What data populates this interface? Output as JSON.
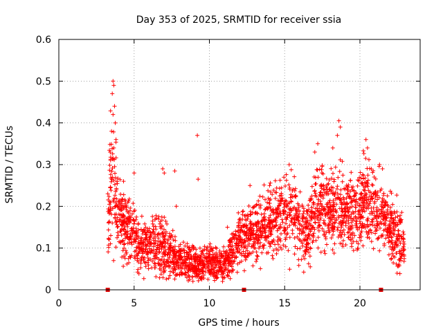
{
  "chart_data": {
    "type": "scatter",
    "title": "Day 353 of 2025, SRMTID for receiver ssia",
    "xlabel": "GPS time / hours",
    "ylabel": "SRMTID / TECUs",
    "xlim": [
      0,
      24
    ],
    "ylim": [
      0,
      0.6
    ],
    "x_ticks": [
      0,
      5,
      10,
      15,
      20
    ],
    "y_ticks": [
      0,
      0.1,
      0.2,
      0.3,
      0.4,
      0.5,
      0.6
    ],
    "x_tick_labels": [
      "0",
      "5",
      "10",
      "15",
      "20"
    ],
    "y_tick_labels": [
      "0",
      "0.1",
      "0.2",
      "0.3",
      "0.4",
      "0.5",
      "0.6"
    ],
    "grid": true,
    "marker": "plus",
    "color": "#ff0000",
    "baseline_markers_x": [
      3.25,
      12.3,
      21.4
    ],
    "trend": [
      [
        3.3,
        0.16,
        0.045
      ],
      [
        3.5,
        0.3,
        0.09
      ],
      [
        3.7,
        0.24,
        0.06
      ],
      [
        3.9,
        0.19,
        0.05
      ],
      [
        4.2,
        0.16,
        0.04
      ],
      [
        4.6,
        0.15,
        0.04
      ],
      [
        5.0,
        0.13,
        0.035
      ],
      [
        5.5,
        0.11,
        0.03
      ],
      [
        6.0,
        0.11,
        0.03
      ],
      [
        6.5,
        0.11,
        0.035
      ],
      [
        7.0,
        0.1,
        0.035
      ],
      [
        7.5,
        0.09,
        0.03
      ],
      [
        8.0,
        0.075,
        0.02
      ],
      [
        8.5,
        0.065,
        0.02
      ],
      [
        9.0,
        0.06,
        0.02
      ],
      [
        9.5,
        0.065,
        0.02
      ],
      [
        10.0,
        0.065,
        0.02
      ],
      [
        10.5,
        0.06,
        0.02
      ],
      [
        11.0,
        0.065,
        0.02
      ],
      [
        11.5,
        0.085,
        0.025
      ],
      [
        12.0,
        0.12,
        0.03
      ],
      [
        12.5,
        0.13,
        0.03
      ],
      [
        13.0,
        0.14,
        0.035
      ],
      [
        13.5,
        0.15,
        0.04
      ],
      [
        14.0,
        0.16,
        0.04
      ],
      [
        14.5,
        0.17,
        0.04
      ],
      [
        15.0,
        0.18,
        0.045
      ],
      [
        15.5,
        0.19,
        0.045
      ],
      [
        16.0,
        0.16,
        0.04
      ],
      [
        16.5,
        0.14,
        0.035
      ],
      [
        17.0,
        0.19,
        0.045
      ],
      [
        17.5,
        0.2,
        0.045
      ],
      [
        18.0,
        0.18,
        0.045
      ],
      [
        18.5,
        0.22,
        0.05
      ],
      [
        19.0,
        0.19,
        0.045
      ],
      [
        19.5,
        0.18,
        0.045
      ],
      [
        20.0,
        0.19,
        0.045
      ],
      [
        20.5,
        0.22,
        0.05
      ],
      [
        21.0,
        0.2,
        0.05
      ],
      [
        21.5,
        0.18,
        0.045
      ],
      [
        22.0,
        0.15,
        0.04
      ],
      [
        22.5,
        0.12,
        0.035
      ],
      [
        22.9,
        0.11,
        0.03
      ]
    ],
    "outliers": [
      [
        3.6,
        0.5
      ],
      [
        3.65,
        0.49
      ],
      [
        3.55,
        0.47
      ],
      [
        3.7,
        0.44
      ],
      [
        3.6,
        0.42
      ],
      [
        3.75,
        0.4
      ],
      [
        3.5,
        0.38
      ],
      [
        3.8,
        0.36
      ],
      [
        3.65,
        0.34
      ],
      [
        9.2,
        0.37
      ],
      [
        9.25,
        0.265
      ],
      [
        6.9,
        0.29
      ],
      [
        7.0,
        0.28
      ],
      [
        7.7,
        0.285
      ],
      [
        5.0,
        0.28
      ],
      [
        18.6,
        0.405
      ],
      [
        18.7,
        0.39
      ],
      [
        18.5,
        0.37
      ],
      [
        20.4,
        0.36
      ],
      [
        20.5,
        0.34
      ],
      [
        17.0,
        0.33
      ],
      [
        17.2,
        0.35
      ],
      [
        18.2,
        0.34
      ],
      [
        15.3,
        0.3
      ],
      [
        14.0,
        0.25
      ],
      [
        12.7,
        0.25
      ],
      [
        16.7,
        0.055
      ],
      [
        21.3,
        0.3
      ],
      [
        21.5,
        0.29
      ],
      [
        11.2,
        0.15
      ],
      [
        7.8,
        0.2
      ],
      [
        3.9,
        0.2
      ],
      [
        4.3,
        0.26
      ]
    ],
    "x_range_points": [
      3.25,
      22.95
    ],
    "n_points": 2600
  }
}
